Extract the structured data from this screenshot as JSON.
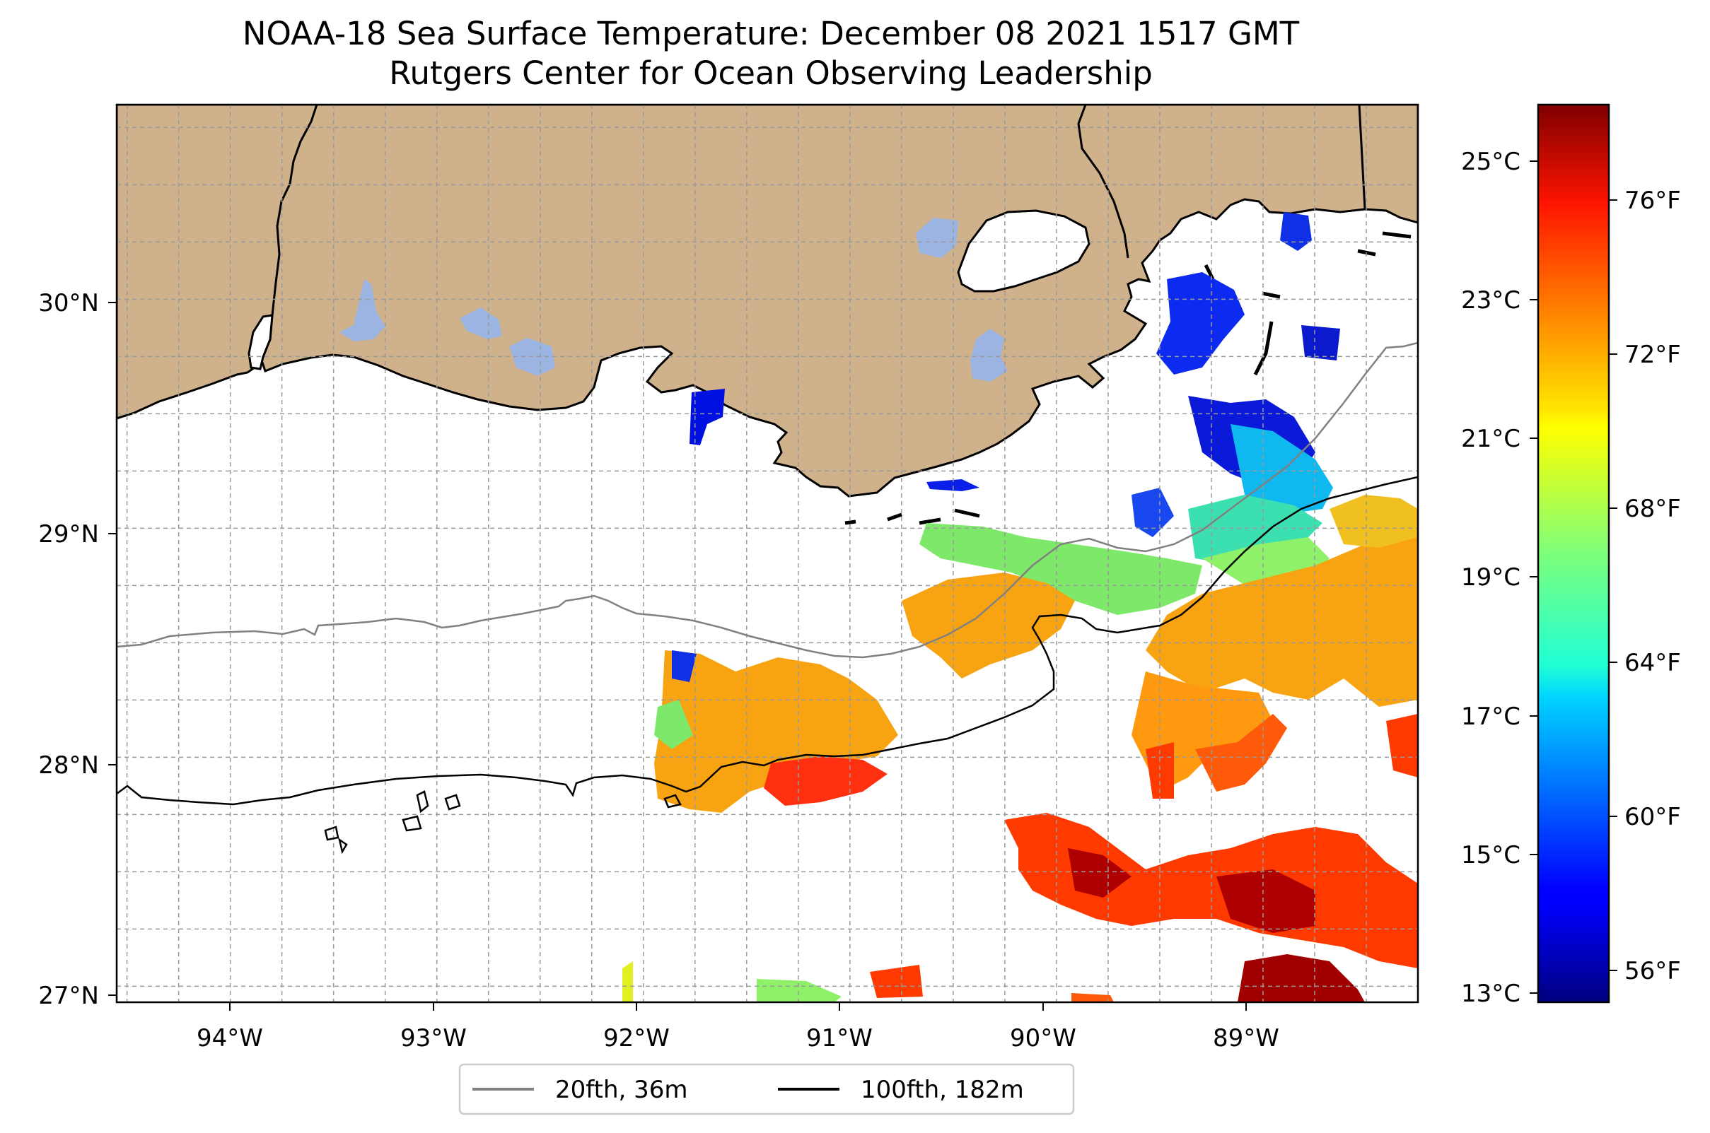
{
  "title": {
    "line1": "NOAA-18 Sea Surface Temperature: December 08 2021 1517 GMT",
    "line2": "Rutgers Center for Ocean Observing Leadership"
  },
  "map": {
    "region": "Northern Gulf of Mexico / Louisiana coast",
    "lon_range": [
      -94.55,
      -88.25
    ],
    "lat_range": [
      26.93,
      30.85
    ],
    "lon_ticks": [
      "94°W",
      "93°W",
      "92°W",
      "91°W",
      "90°W",
      "89°W"
    ],
    "lat_ticks": [
      "30°N",
      "29°N",
      "28°N",
      "27°N"
    ],
    "gridlines": true,
    "land_color": "#cfb18b",
    "lake_color": "#9bb4e2",
    "ocean_color": "#ffffff"
  },
  "colorbar": {
    "colormap": "jet",
    "celsius_labels": [
      "25°C",
      "23°C",
      "21°C",
      "19°C",
      "17°C",
      "15°C",
      "13°C"
    ],
    "fahrenheit_labels": [
      "76°F",
      "72°F",
      "68°F",
      "64°F",
      "60°F",
      "56°F"
    ]
  },
  "legend": {
    "position": "bottom-center",
    "entries": [
      {
        "label": "20fth, 36m",
        "color": "#808080"
      },
      {
        "label": "100fth, 182m",
        "color": "#000000"
      }
    ]
  }
}
